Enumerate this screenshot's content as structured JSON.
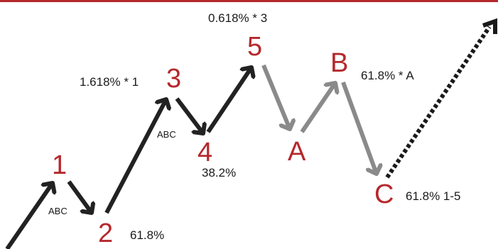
{
  "colors": {
    "accent": "#b5282c",
    "impulse_arrow": "#222222",
    "corrective_arrow": "#8a8a8a",
    "projection": "#1a1a1a"
  },
  "wave_labels": {
    "w1": "1",
    "w2": "2",
    "w3": "3",
    "w4": "4",
    "w5": "5",
    "wa": "A",
    "wb": "B",
    "wc": "C"
  },
  "ratios": {
    "w2": "61.8%",
    "w3": "1.618% * 1",
    "w4": "38.2%",
    "w5": "0.618% * 3",
    "wb": "61.8% * A",
    "wc": "61.8% 1-5"
  },
  "sub_labels": {
    "w2_abc": "ABC",
    "w4_abc": "ABC"
  },
  "arrow_styles": {
    "impulse": "solid-dark",
    "corrective": "solid-gray",
    "projection": "dotted-dark"
  }
}
